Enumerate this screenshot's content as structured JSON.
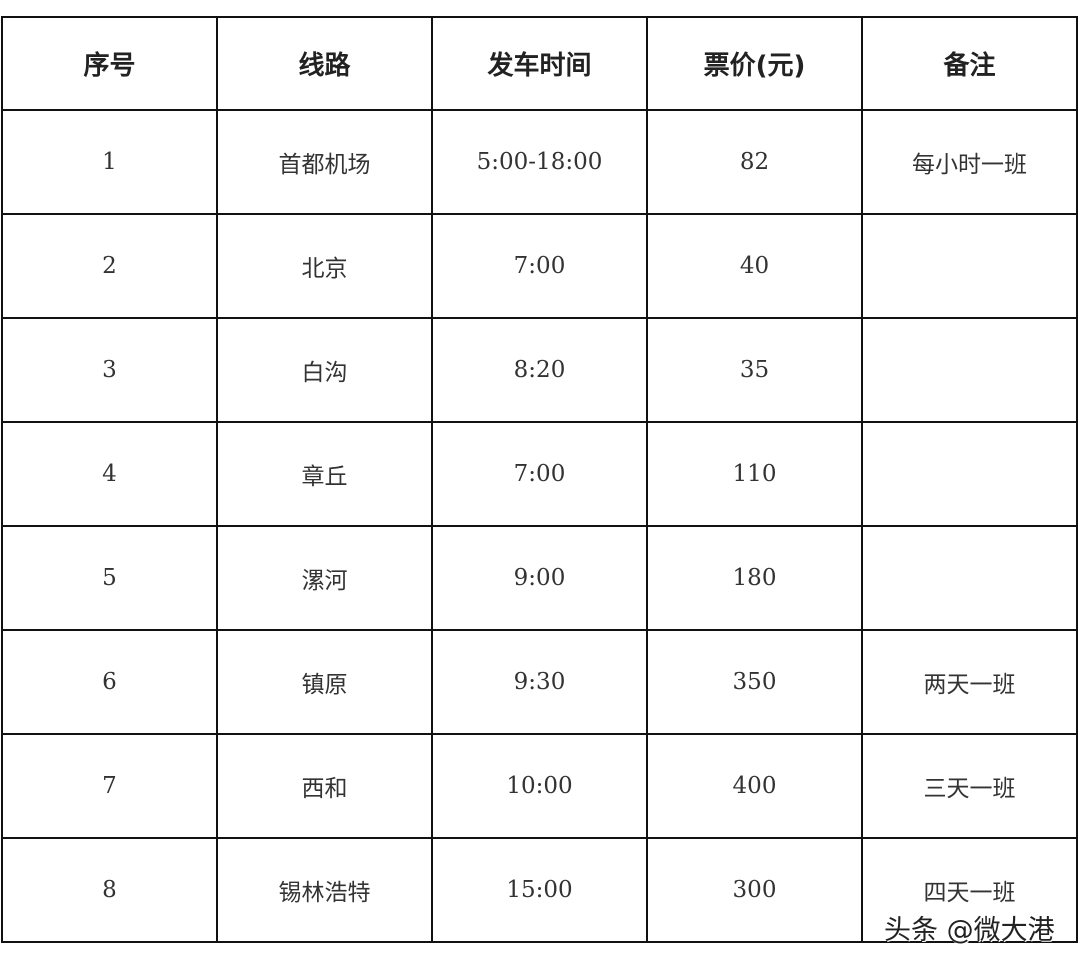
{
  "table": {
    "headers": [
      "序号",
      "线路",
      "发车时间",
      "票价(元)",
      "备注"
    ],
    "rows": [
      [
        "1",
        "首都机场",
        "5:00-18:00",
        "82",
        "每小时一班"
      ],
      [
        "2",
        "北京",
        "7:00",
        "40",
        ""
      ],
      [
        "3",
        "白沟",
        "8:20",
        "35",
        ""
      ],
      [
        "4",
        "章丘",
        "7:00",
        "110",
        ""
      ],
      [
        "5",
        "漯河",
        "9:00",
        "180",
        ""
      ],
      [
        "6",
        "镇原",
        "9:30",
        "350",
        "两天一班"
      ],
      [
        "7",
        "西和",
        "10:00",
        "400",
        "三天一班"
      ],
      [
        "8",
        "锡林浩特",
        "15:00",
        "300",
        "四天一班"
      ]
    ]
  },
  "watermark": "头条 @微大港"
}
